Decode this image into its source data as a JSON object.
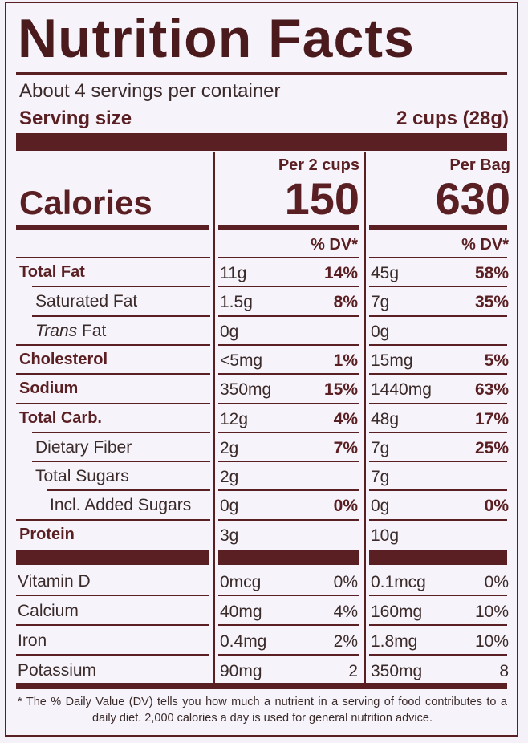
{
  "title": "Nutrition Facts",
  "servings_per_container": "About 4 servings per container",
  "serving_size_label": "Serving size",
  "serving_size_value": "2 cups (28g)",
  "calories_label": "Calories",
  "columns": [
    {
      "header": "Per 2 cups",
      "calories": "150"
    },
    {
      "header": "Per Bag",
      "calories": "630"
    }
  ],
  "dv_header": "% DV*",
  "nutrients": [
    {
      "name": "Total Fat",
      "bold": true,
      "indent": 0,
      "c1_amt": "11g",
      "c1_dv": "14%",
      "c2_amt": "45g",
      "c2_dv": "58%"
    },
    {
      "name": "Saturated Fat",
      "bold": false,
      "indent": 1,
      "c1_amt": "1.5g",
      "c1_dv": "8%",
      "c2_amt": "7g",
      "c2_dv": "35%"
    },
    {
      "name_italic": "Trans",
      "name": " Fat",
      "bold": false,
      "indent": 1,
      "c1_amt": "0g",
      "c1_dv": "",
      "c2_amt": "0g",
      "c2_dv": ""
    },
    {
      "name": "Cholesterol",
      "bold": true,
      "indent": 0,
      "c1_amt": "<5mg",
      "c1_dv": "1%",
      "c2_amt": "15mg",
      "c2_dv": "5%"
    },
    {
      "name": "Sodium",
      "bold": true,
      "indent": 0,
      "c1_amt": "350mg",
      "c1_dv": "15%",
      "c2_amt": "1440mg",
      "c2_dv": "63%"
    },
    {
      "name": "Total Carb.",
      "bold": true,
      "indent": 0,
      "c1_amt": "12g",
      "c1_dv": "4%",
      "c2_amt": "48g",
      "c2_dv": "17%"
    },
    {
      "name": "Dietary Fiber",
      "bold": false,
      "indent": 1,
      "c1_amt": "2g",
      "c1_dv": "7%",
      "c2_amt": "7g",
      "c2_dv": "25%"
    },
    {
      "name": "Total Sugars",
      "bold": false,
      "indent": 1,
      "c1_amt": "2g",
      "c1_dv": "",
      "c2_amt": "7g",
      "c2_dv": ""
    },
    {
      "name": "Incl. Added Sugars",
      "bold": false,
      "indent": 2,
      "c1_amt": "0g",
      "c1_dv": "0%",
      "c2_amt": "0g",
      "c2_dv": "0%"
    },
    {
      "name": "Protein",
      "bold": true,
      "indent": 0,
      "c1_amt": "3g",
      "c1_dv": "",
      "c2_amt": "10g",
      "c2_dv": ""
    }
  ],
  "vitamins": [
    {
      "name": "Vitamin D",
      "c1_amt": "0mcg",
      "c1_dv": "0%",
      "c2_amt": "0.1mcg",
      "c2_dv": "0%"
    },
    {
      "name": "Calcium",
      "c1_amt": "40mg",
      "c1_dv": "4%",
      "c2_amt": "160mg",
      "c2_dv": "10%"
    },
    {
      "name": "Iron",
      "c1_amt": "0.4mg",
      "c1_dv": "2%",
      "c2_amt": "1.8mg",
      "c2_dv": "10%"
    },
    {
      "name": "Potassium",
      "c1_amt": "90mg",
      "c1_dv": "2",
      "c2_amt": "350mg",
      "c2_dv": "8"
    }
  ],
  "footnote": "* The % Daily Value (DV) tells you how much a nutrient in a serving of food contributes to a daily diet. 2,000 calories a day is used for general nutrition advice."
}
